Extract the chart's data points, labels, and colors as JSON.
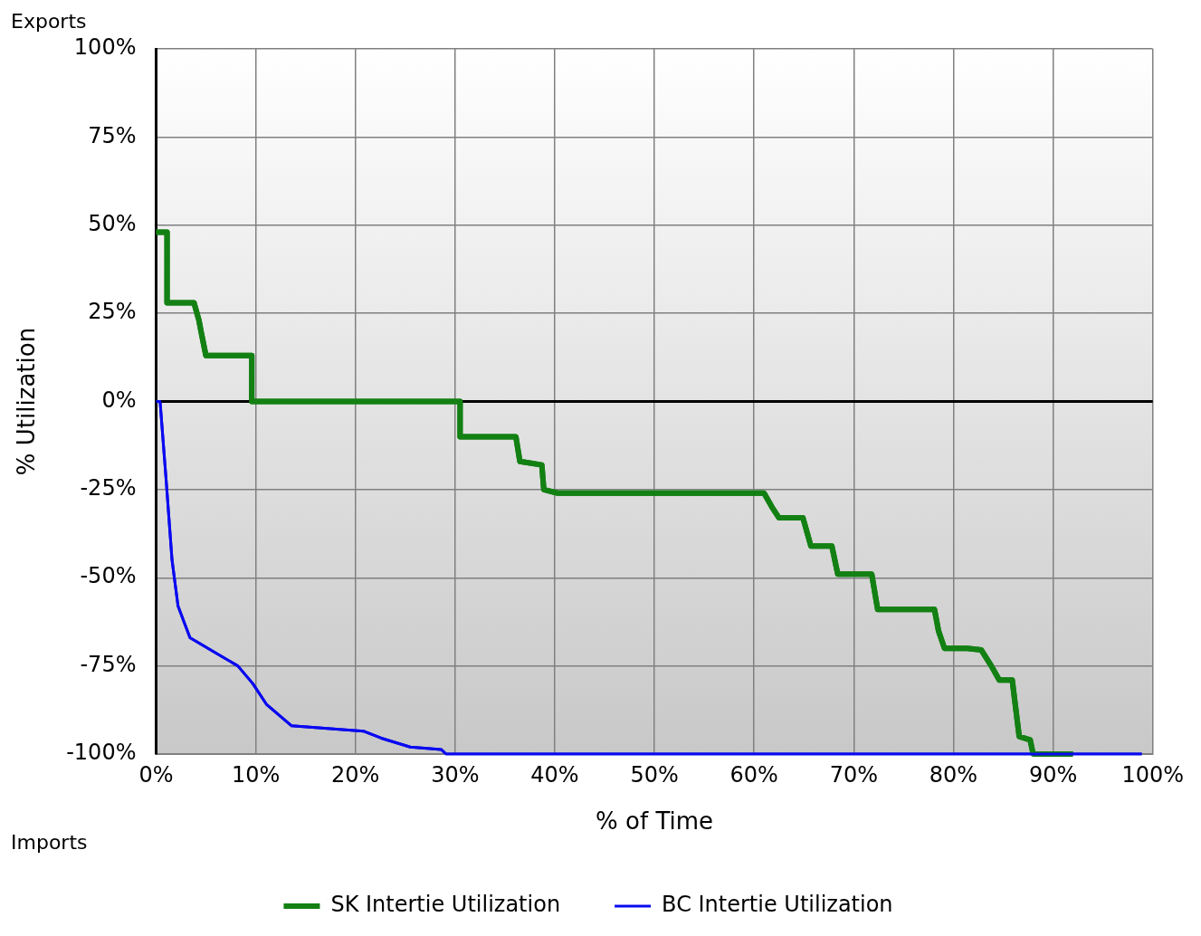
{
  "chart_data": {
    "type": "line",
    "xlabel": "% of Time",
    "ylabel": "% Utilization",
    "annotations": [
      "Exports",
      "Imports"
    ],
    "xlim": [
      0,
      100
    ],
    "xticks": [
      {
        "value": 0,
        "label": "0%"
      },
      {
        "value": 10,
        "label": "10%"
      },
      {
        "value": 20,
        "label": "20%"
      },
      {
        "value": 30,
        "label": "30%"
      },
      {
        "value": 40,
        "label": "40%"
      },
      {
        "value": 50,
        "label": "50%"
      },
      {
        "value": 60,
        "label": "60%"
      },
      {
        "value": 70,
        "label": "70%"
      },
      {
        "value": 80,
        "label": "80%"
      },
      {
        "value": 90,
        "label": "90%"
      },
      {
        "value": 100,
        "label": "100%"
      }
    ],
    "ylim": [
      -100,
      100
    ],
    "yticks": [
      {
        "value": -100,
        "label": "-100%"
      },
      {
        "value": -75,
        "label": "-75%"
      },
      {
        "value": -50,
        "label": "-50%"
      },
      {
        "value": -25,
        "label": "-25%"
      },
      {
        "value": 0,
        "label": "0%"
      },
      {
        "value": 25,
        "label": "25%"
      },
      {
        "value": 50,
        "label": "50%"
      },
      {
        "value": 75,
        "label": "75%"
      },
      {
        "value": 100,
        "label": "100%"
      }
    ],
    "grid": true,
    "legend": "bottom",
    "marker": "none",
    "line_style": "solid",
    "ref_lines": [
      {
        "axis": "y",
        "value": 0,
        "color": "#000000"
      }
    ],
    "series": [
      {
        "name": "SK Intertie Utilization",
        "color": "#138013",
        "x": [
          0,
          1.1,
          1.1,
          3.8,
          4.3,
          4.5,
          5,
          9.6,
          9.6,
          30.5,
          30.5,
          36.1,
          36.5,
          38.7,
          38.9,
          40.3,
          61,
          61.8,
          62.5,
          64.9,
          65.7,
          67.8,
          68.4,
          71.8,
          72.4,
          78.1,
          78.5,
          79.1,
          81.4,
          82.8,
          83.8,
          84.6,
          85.9,
          86.6,
          87.7,
          88,
          92
        ],
        "values": [
          48,
          48,
          28,
          28,
          23,
          20,
          13,
          13,
          0,
          0,
          -10,
          -10,
          -17,
          -18,
          -25,
          -26,
          -26,
          -30,
          -33,
          -33,
          -41,
          -41,
          -49,
          -49,
          -59,
          -59,
          -65,
          -70,
          -70,
          -70.5,
          -75,
          -79,
          -79,
          -95,
          -96,
          -100,
          -100
        ]
      },
      {
        "name": "BC Intertie Utilization",
        "color": "#0a0af0",
        "x": [
          0,
          0.4,
          1,
          1.6,
          2.2,
          3.4,
          6.4,
          8.2,
          9.7,
          11.1,
          13.6,
          16,
          20.8,
          22.6,
          25.5,
          28.6,
          29.1,
          98.9
        ],
        "values": [
          0,
          0,
          -22,
          -45,
          -58,
          -67,
          -72,
          -75,
          -80,
          -86,
          -92,
          -92.5,
          -93.5,
          -95.5,
          -98,
          -98.7,
          -100,
          -100
        ]
      }
    ]
  }
}
